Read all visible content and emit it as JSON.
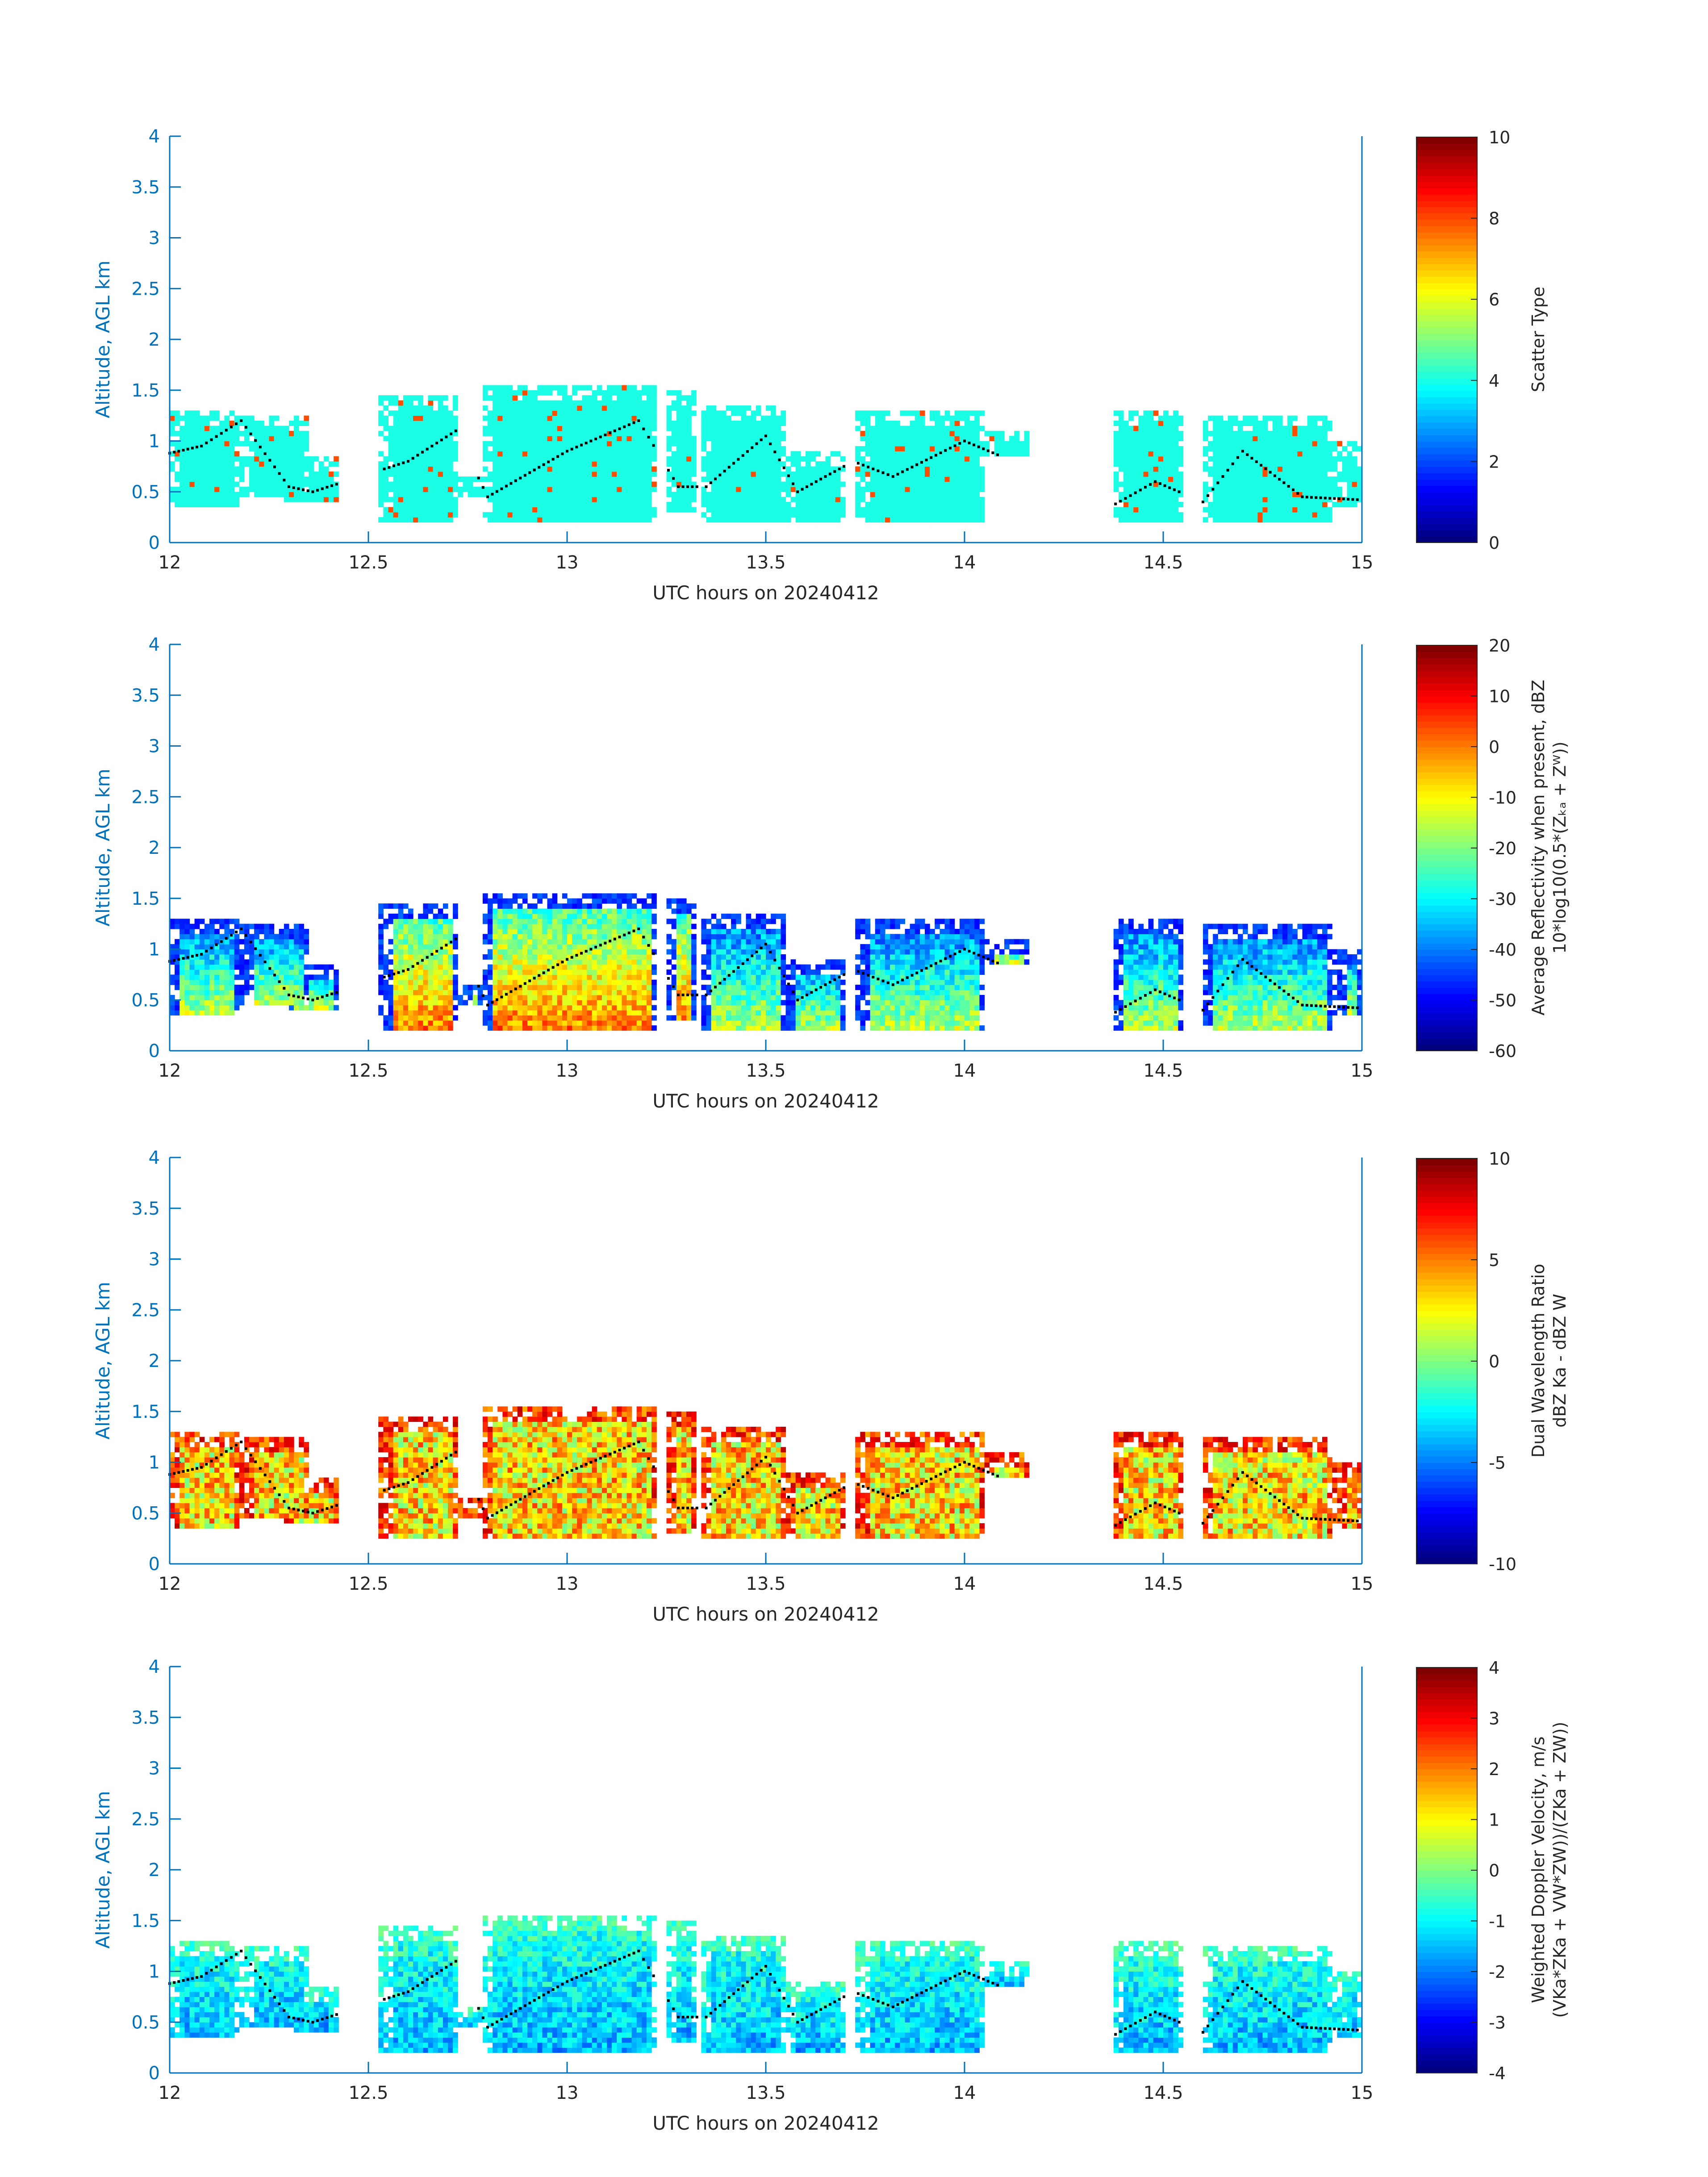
{
  "figure": {
    "xlabel": "UTC hours on 20240412",
    "ylabel": "Altitude, AGL km",
    "xticks": [
      "12",
      "12.5",
      "13",
      "13.5",
      "14",
      "14.5",
      "15"
    ],
    "yticks": [
      "0",
      "0.5",
      "1",
      "1.5",
      "2",
      "2.5",
      "3",
      "3.5",
      "4"
    ],
    "axis_color": "#0072BD"
  },
  "chart_data": [
    {
      "type": "heatmap",
      "xlim": [
        12,
        15
      ],
      "ylim": [
        0,
        4
      ],
      "grid": false,
      "xlabel": "UTC hours on 20240412",
      "ylabel": "Altitude, AGL km",
      "colorbar": {
        "label": "Scatter Type",
        "sub": "",
        "range": [
          0,
          10
        ],
        "ticks": [
          "0",
          "2",
          "4",
          "6",
          "8",
          "10"
        ]
      },
      "colormap": "jet",
      "field": "scatter_type"
    },
    {
      "type": "heatmap",
      "xlim": [
        12,
        15
      ],
      "ylim": [
        0,
        4
      ],
      "grid": false,
      "xlabel": "UTC hours on 20240412",
      "ylabel": "Altitude, AGL km",
      "colorbar": {
        "label": "Average Reflectivity when present, dBZ",
        "sub": "10*log10(0.5*(Zₖₐ + Zᵂ))",
        "range": [
          -60,
          20
        ],
        "ticks": [
          "-60",
          "-50",
          "-40",
          "-30",
          "-20",
          "-10",
          "0",
          "10",
          "20"
        ]
      },
      "colormap": "jet",
      "field": "reflectivity"
    },
    {
      "type": "heatmap",
      "xlim": [
        12,
        15
      ],
      "ylim": [
        0,
        4
      ],
      "grid": false,
      "xlabel": "UTC hours on 20240412",
      "ylabel": "Altitude, AGL km",
      "colorbar": {
        "label": "Dual Wavelength Ratio",
        "sub": "dBZ Ka - dBZ W",
        "range": [
          -10,
          10
        ],
        "ticks": [
          "-10",
          "-5",
          "0",
          "5",
          "10"
        ]
      },
      "colormap": "jet",
      "field": "dwr"
    },
    {
      "type": "heatmap",
      "xlim": [
        12,
        15
      ],
      "ylim": [
        0,
        4
      ],
      "grid": false,
      "xlabel": "UTC hours on 20240412",
      "ylabel": "Altitude, AGL km",
      "colorbar": {
        "label": "Weighted Doppler Velocity, m/s",
        "sub": "(VKa*ZKa + VW*ZW))/(ZKa + ZW))",
        "range": [
          -4,
          4
        ],
        "ticks": [
          "-4",
          "-3",
          "-2",
          "-1",
          "0",
          "1",
          "2",
          "3",
          "4"
        ]
      },
      "colormap": "jet",
      "field": "velocity"
    }
  ],
  "cloud_cells": [
    {
      "t0": 12.0,
      "t1": 12.17,
      "top": 1.3,
      "base": 0.35
    },
    {
      "t0": 12.18,
      "t1": 12.35,
      "top": 1.25,
      "base": 0.45
    },
    {
      "t0": 12.29,
      "t1": 12.43,
      "top": 0.85,
      "base": 0.4
    },
    {
      "t0": 12.53,
      "t1": 12.73,
      "top": 1.45,
      "base": 0.2
    },
    {
      "t0": 12.73,
      "t1": 12.79,
      "top": 0.65,
      "base": 0.45
    },
    {
      "t0": 12.79,
      "t1": 13.22,
      "top": 1.55,
      "base": 0.2
    },
    {
      "t0": 13.25,
      "t1": 13.33,
      "top": 1.5,
      "base": 0.3
    },
    {
      "t0": 13.34,
      "t1": 13.55,
      "top": 1.35,
      "base": 0.2
    },
    {
      "t0": 13.55,
      "t1": 13.7,
      "top": 0.9,
      "base": 0.2
    },
    {
      "t0": 13.73,
      "t1": 14.05,
      "top": 1.3,
      "base": 0.2
    },
    {
      "t0": 14.05,
      "t1": 14.16,
      "top": 1.1,
      "base": 0.85
    },
    {
      "t0": 14.37,
      "t1": 14.55,
      "top": 1.3,
      "base": 0.2
    },
    {
      "t0": 14.6,
      "t1": 14.92,
      "top": 1.25,
      "base": 0.2
    },
    {
      "t0": 14.93,
      "t1": 15.0,
      "top": 1.0,
      "base": 0.35
    }
  ],
  "dotted_line": [
    {
      "t": 12.0,
      "z": 0.88
    },
    {
      "t": 12.08,
      "z": 0.95
    },
    {
      "t": 12.18,
      "z": 1.2
    },
    {
      "t": 12.3,
      "z": 0.55
    },
    {
      "t": 12.36,
      "z": 0.5
    },
    {
      "t": 12.6,
      "z": 0.8
    },
    {
      "t": 12.72,
      "z": 1.1
    },
    {
      "t": 12.8,
      "z": 0.45
    },
    {
      "t": 13.0,
      "z": 0.9
    },
    {
      "t": 13.18,
      "z": 1.2
    },
    {
      "t": 13.28,
      "z": 0.55
    },
    {
      "t": 13.35,
      "z": 0.55
    },
    {
      "t": 13.5,
      "z": 1.05
    },
    {
      "t": 13.58,
      "z": 0.5
    },
    {
      "t": 13.72,
      "z": 0.8
    },
    {
      "t": 13.82,
      "z": 0.65
    },
    {
      "t": 14.0,
      "z": 1.0
    },
    {
      "t": 14.38,
      "z": 0.38
    },
    {
      "t": 14.48,
      "z": 0.6
    },
    {
      "t": 14.6,
      "z": 0.4
    },
    {
      "t": 14.7,
      "z": 0.9
    },
    {
      "t": 14.85,
      "z": 0.45
    },
    {
      "t": 15.0,
      "z": 0.42
    }
  ]
}
